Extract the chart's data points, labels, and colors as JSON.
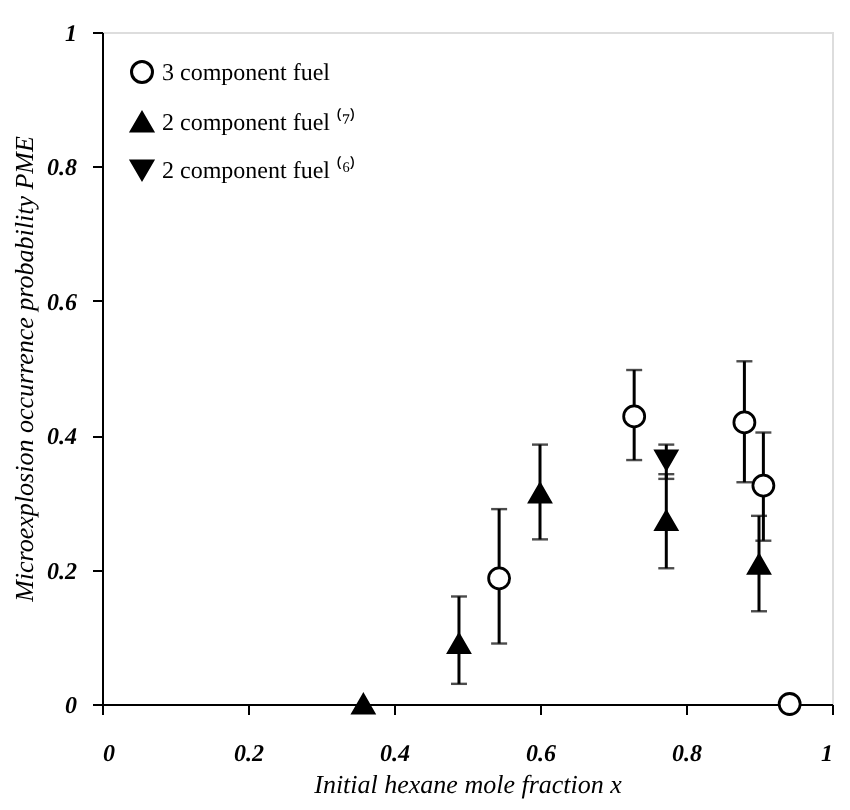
{
  "chart_data": {
    "type": "scatter",
    "xlabel": "Initial hexane mole fraction x",
    "ylabel": "Microexplosion occurrence probability PME",
    "xlim": [
      0,
      1
    ],
    "ylim": [
      0,
      1
    ],
    "xticks": [
      0,
      0.2,
      0.4,
      0.6,
      0.8,
      1
    ],
    "yticks": [
      0,
      0.2,
      0.4,
      0.6,
      0.8,
      1
    ],
    "grid": false,
    "legend": "top left",
    "series": [
      {
        "name": "3 component fuel",
        "color": "#000000",
        "marker": "circle-open",
        "x": [
          0.544,
          0.729,
          0.88,
          0.906,
          0.942
        ],
        "values": [
          0.187,
          0.428,
          0.419,
          0.325,
          0
        ],
        "errors": [
          [
            0.09,
            0.29
          ],
          [
            0.363,
            0.497
          ],
          [
            0.33,
            0.51
          ],
          [
            0.243,
            0.404
          ],
          null
        ]
      },
      {
        "name": "2 component fuel ⁽⁷⁾",
        "color": "#000000",
        "marker": "triangle",
        "x": [
          0.358,
          0.489,
          0.6,
          0.773,
          0.9
        ],
        "values": [
          0,
          0.09,
          0.314,
          0.273,
          0.208
        ],
        "errors": [
          null,
          [
            0.03,
            0.16
          ],
          [
            0.245,
            0.386
          ],
          [
            0.202,
            0.342
          ],
          [
            0.138,
            0.28
          ]
        ]
      },
      {
        "name": "2 component fuel ⁽⁶⁾",
        "color": "#000000",
        "marker": "triangle-down",
        "x": [
          0.773
        ],
        "values": [
          0.363
        ],
        "errors": [
          [
            0.335,
            0.386
          ]
        ]
      }
    ]
  }
}
